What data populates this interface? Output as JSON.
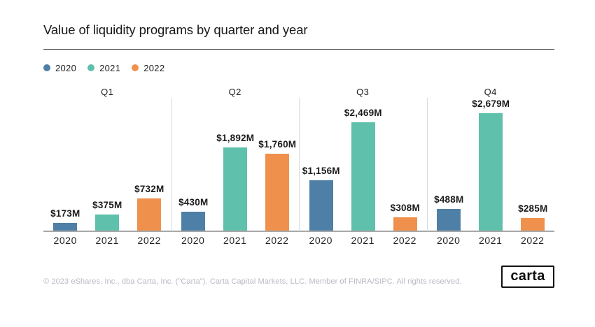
{
  "header": {
    "title": "Value of liquidity programs by quarter and year"
  },
  "legend": {
    "items": [
      {
        "label": "2020",
        "color": "#4E7FA6"
      },
      {
        "label": "2021",
        "color": "#5FC0AC"
      },
      {
        "label": "2022",
        "color": "#EF914D"
      }
    ]
  },
  "chart_data": {
    "type": "bar",
    "title": "Value of liquidity programs by quarter and year",
    "categories": [
      "Q1",
      "Q2",
      "Q3",
      "Q4"
    ],
    "series": [
      {
        "name": "2020",
        "color": "#4E7FA6",
        "values": [
          173,
          430,
          1156,
          488
        ]
      },
      {
        "name": "2021",
        "color": "#5FC0AC",
        "values": [
          375,
          1892,
          2469,
          2679
        ]
      },
      {
        "name": "2022",
        "color": "#EF914D",
        "values": [
          732,
          1760,
          308,
          285
        ]
      }
    ],
    "value_labels": {
      "Q1": [
        "$173M",
        "$375M",
        "$732M"
      ],
      "Q2": [
        "$430M",
        "$1,892M",
        "$1,760M"
      ],
      "Q3": [
        "$1,156M",
        "$2,469M",
        "$308M"
      ],
      "Q4": [
        "$488M",
        "$2,679M",
        "$285M"
      ]
    },
    "value_unit": "M",
    "value_prefix": "$",
    "xlabel": "",
    "ylabel": "",
    "ylim": [
      0,
      2679
    ],
    "grid": false,
    "legend_position": "top-left",
    "group_separators": true
  },
  "footer": {
    "copyright": "© 2023 eShares, Inc., dba Carta, Inc. (\"Carta\"). Carta Capital Markets, LLC. Member of FINRA/SIPC. All rights reserved.",
    "logo_text": "carta"
  }
}
